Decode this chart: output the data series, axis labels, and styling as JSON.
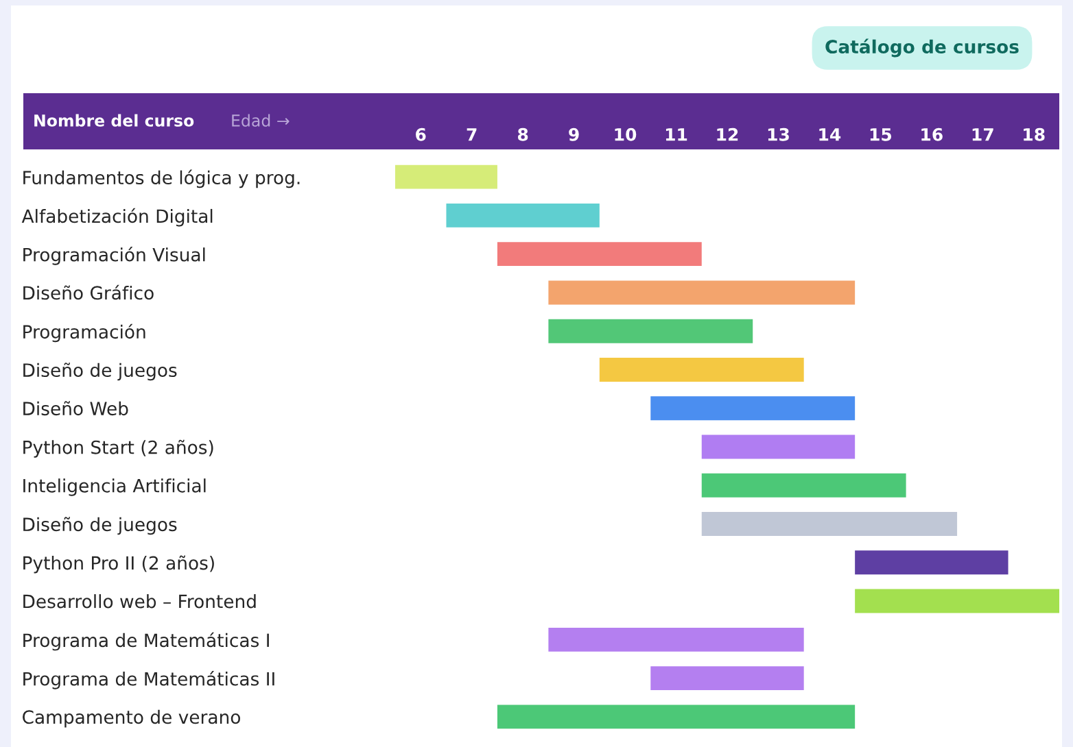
{
  "chart_data": {
    "type": "bar",
    "orientation": "horizontal",
    "ylabel": "Nombre del curso",
    "xlabel": "Edad →",
    "annotations": [
      "Catálogo de cursos"
    ],
    "categories": [
      "Fundamentos de lógica y prog.",
      "Alfabetización Digital",
      "Programación Visual",
      "Diseño Gráfico",
      "Programación",
      "Diseño de juegos",
      "Diseño Web",
      "Python Start (2 años)",
      "Inteligencia Artificial",
      "Diseño de juegos",
      "Python Pro II (2 años)",
      "Desarrollo web – Frontend",
      "Programa de Matemáticas I",
      "Programa de Matemáticas II",
      "Campamento de verano"
    ],
    "base": [
      5.5,
      6.5,
      7.5,
      8.5,
      8.5,
      9.5,
      10.5,
      11.5,
      11.5,
      11.5,
      14.5,
      14.5,
      8.5,
      10.5,
      7.5
    ],
    "values": [
      2,
      3,
      4,
      6,
      4,
      4,
      4,
      3,
      4,
      5,
      3,
      4,
      5,
      3,
      7
    ],
    "colors": [
      "#d6ec78",
      "#5fcfd0",
      "#f27b7b",
      "#f3a46d",
      "#52c777",
      "#f4c842",
      "#4b8ef0",
      "#b07df2",
      "#4cc877",
      "#c0c7d6",
      "#5e3fa3",
      "#a3e04f",
      "#b47ff0",
      "#b47ff0",
      "#4cc877"
    ],
    "xlim": [
      5.5,
      18.5
    ],
    "xticks": [
      6,
      7,
      8,
      9,
      10,
      11,
      12,
      13,
      14,
      15,
      16,
      17,
      18
    ],
    "legend": false
  }
}
